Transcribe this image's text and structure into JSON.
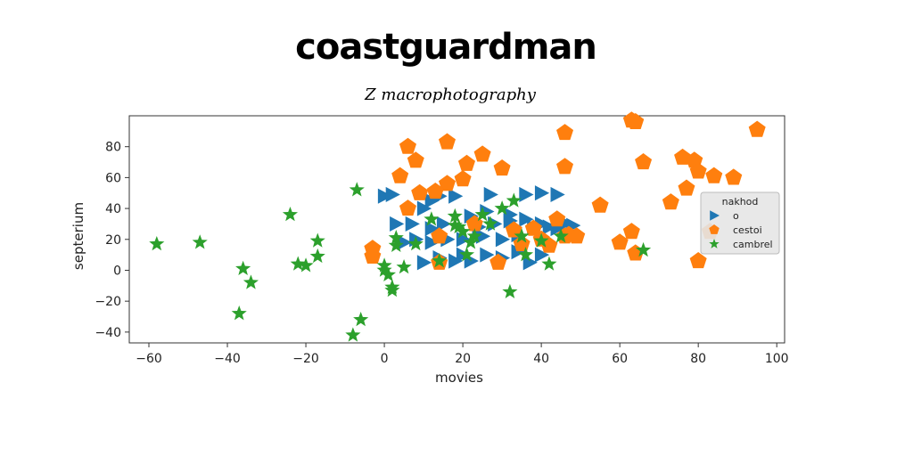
{
  "chart_data": {
    "type": "scatter",
    "title": "coastguardman",
    "subtitle": "Z macrophotography",
    "xlabel": "movies",
    "ylabel": "septerium",
    "xlim": [
      -65,
      102
    ],
    "ylim": [
      -47,
      100
    ],
    "xticks": [
      -60,
      -40,
      -20,
      0,
      20,
      40,
      60,
      80,
      100
    ],
    "yticks": [
      -40,
      -20,
      0,
      20,
      40,
      60,
      80
    ],
    "grid": false,
    "legend": {
      "title": "nakhod",
      "position": "right"
    },
    "series": [
      {
        "name": "o",
        "marker": "triangle-right",
        "color": "#1f77b4",
        "points": [
          [
            0,
            48
          ],
          [
            2,
            49
          ],
          [
            7,
            30
          ],
          [
            10,
            40
          ],
          [
            12,
            45
          ],
          [
            14,
            48
          ],
          [
            18,
            48
          ],
          [
            22,
            35
          ],
          [
            27,
            49
          ],
          [
            32,
            36
          ],
          [
            36,
            49
          ],
          [
            40,
            50
          ],
          [
            44,
            49
          ],
          [
            46,
            30
          ],
          [
            3,
            30
          ],
          [
            5,
            18
          ],
          [
            8,
            20
          ],
          [
            12,
            18
          ],
          [
            16,
            20
          ],
          [
            20,
            20
          ],
          [
            25,
            22
          ],
          [
            28,
            30
          ],
          [
            30,
            20
          ],
          [
            34,
            23
          ],
          [
            36,
            33
          ],
          [
            38,
            28
          ],
          [
            40,
            30
          ],
          [
            42,
            28
          ],
          [
            44,
            27
          ],
          [
            48,
            29
          ],
          [
            10,
            5
          ],
          [
            14,
            8
          ],
          [
            18,
            6
          ],
          [
            20,
            10
          ],
          [
            22,
            6
          ],
          [
            26,
            10
          ],
          [
            30,
            8
          ],
          [
            34,
            12
          ],
          [
            37,
            5
          ],
          [
            40,
            10
          ],
          [
            45,
            32
          ],
          [
            12,
            27
          ],
          [
            15,
            30
          ],
          [
            26,
            38
          ],
          [
            24,
            28
          ],
          [
            32,
            32
          ]
        ]
      },
      {
        "name": "cestoi",
        "marker": "pentagon",
        "color": "#ff7f0e",
        "points": [
          [
            6,
            80
          ],
          [
            8,
            71
          ],
          [
            4,
            61
          ],
          [
            9,
            50
          ],
          [
            16,
            83
          ],
          [
            21,
            69
          ],
          [
            25,
            75
          ],
          [
            20,
            59
          ],
          [
            16,
            56
          ],
          [
            13,
            51
          ],
          [
            6,
            40
          ],
          [
            30,
            66
          ],
          [
            46,
            89
          ],
          [
            46,
            67
          ],
          [
            63,
            97
          ],
          [
            64,
            96
          ],
          [
            66,
            70
          ],
          [
            76,
            73
          ],
          [
            79,
            71
          ],
          [
            80,
            64
          ],
          [
            77,
            53
          ],
          [
            73,
            44
          ],
          [
            55,
            42
          ],
          [
            84,
            61
          ],
          [
            89,
            60
          ],
          [
            95,
            91
          ],
          [
            83,
            25
          ],
          [
            80,
            6
          ],
          [
            60,
            18
          ],
          [
            63,
            25
          ],
          [
            64,
            11
          ],
          [
            35,
            17
          ],
          [
            40,
            20
          ],
          [
            42,
            16
          ],
          [
            44,
            33
          ],
          [
            46,
            22
          ],
          [
            47,
            23
          ],
          [
            49,
            22
          ],
          [
            38,
            27
          ],
          [
            33,
            26
          ],
          [
            29,
            5
          ],
          [
            14,
            5
          ],
          [
            14,
            22
          ],
          [
            -3,
            14
          ],
          [
            -3,
            9
          ],
          [
            23,
            30
          ]
        ]
      },
      {
        "name": "cambrel",
        "marker": "star",
        "color": "#2ca02c",
        "points": [
          [
            -58,
            17
          ],
          [
            -47,
            18
          ],
          [
            -36,
            1
          ],
          [
            -34,
            -8
          ],
          [
            -37,
            -28
          ],
          [
            -24,
            36
          ],
          [
            -22,
            4
          ],
          [
            -20,
            3
          ],
          [
            -17,
            9
          ],
          [
            -17,
            19
          ],
          [
            -7,
            52
          ],
          [
            -6,
            -32
          ],
          [
            -8,
            -42
          ],
          [
            0,
            3
          ],
          [
            0,
            0
          ],
          [
            1,
            -3
          ],
          [
            2,
            -11
          ],
          [
            2,
            -13
          ],
          [
            3,
            16
          ],
          [
            3,
            21
          ],
          [
            5,
            2
          ],
          [
            8,
            17
          ],
          [
            12,
            33
          ],
          [
            14,
            6
          ],
          [
            18,
            35
          ],
          [
            18,
            29
          ],
          [
            19,
            28
          ],
          [
            20,
            25
          ],
          [
            21,
            10
          ],
          [
            22,
            18
          ],
          [
            23,
            22
          ],
          [
            25,
            36
          ],
          [
            27,
            30
          ],
          [
            30,
            40
          ],
          [
            33,
            45
          ],
          [
            32,
            -14
          ],
          [
            35,
            22
          ],
          [
            36,
            10
          ],
          [
            40,
            19
          ],
          [
            42,
            4
          ],
          [
            45,
            22
          ],
          [
            66,
            13
          ]
        ]
      }
    ]
  }
}
